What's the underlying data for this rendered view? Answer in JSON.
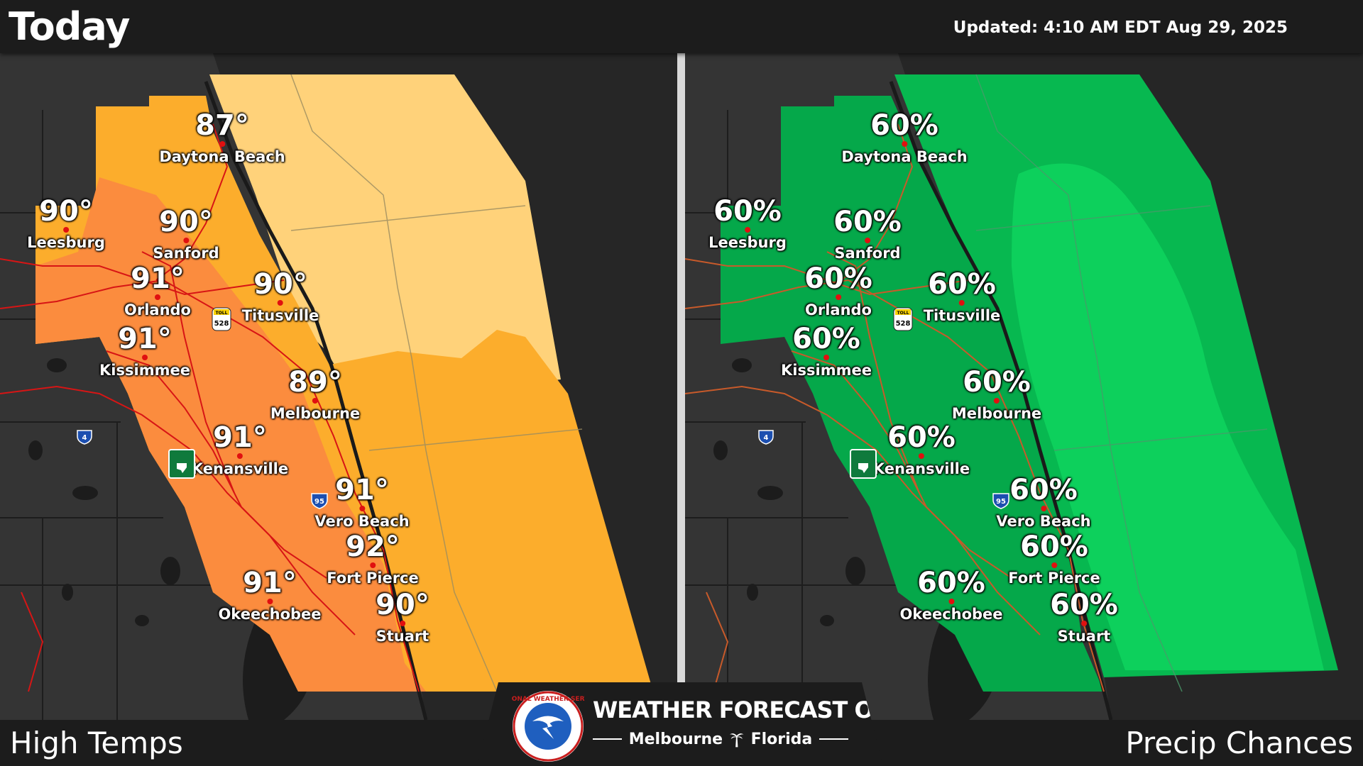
{
  "header": {
    "title": "Today",
    "updated": "Updated:  4:10 AM EDT Aug 29, 2025"
  },
  "left_panel": {
    "label": "High Temps",
    "cities": [
      {
        "name": "Daytona Beach",
        "value": "87°"
      },
      {
        "name": "Leesburg",
        "value": "90°"
      },
      {
        "name": "Sanford",
        "value": "90°"
      },
      {
        "name": "Orlando",
        "value": "91°"
      },
      {
        "name": "Titusville",
        "value": "90°"
      },
      {
        "name": "Kissimmee",
        "value": "91°"
      },
      {
        "name": "Melbourne",
        "value": "89°"
      },
      {
        "name": "Kenansville",
        "value": "91°"
      },
      {
        "name": "Vero Beach",
        "value": "91°"
      },
      {
        "name": "Fort Pierce",
        "value": "92°"
      },
      {
        "name": "Okeechobee",
        "value": "91°"
      },
      {
        "name": "Stuart",
        "value": "90°"
      }
    ],
    "colors": {
      "zone_88": "#ffd27a",
      "zone_90": "#fcad2c",
      "zone_91": "#fb8c3e"
    }
  },
  "right_panel": {
    "label": "Precip Chances",
    "cities": [
      {
        "name": "Daytona Beach",
        "value": "60%"
      },
      {
        "name": "Leesburg",
        "value": "60%"
      },
      {
        "name": "Sanford",
        "value": "60%"
      },
      {
        "name": "Orlando",
        "value": "60%"
      },
      {
        "name": "Titusville",
        "value": "60%"
      },
      {
        "name": "Kissimmee",
        "value": "60%"
      },
      {
        "name": "Melbourne",
        "value": "60%"
      },
      {
        "name": "Kenansville",
        "value": "60%"
      },
      {
        "name": "Vero Beach",
        "value": "60%"
      },
      {
        "name": "Fort Pierce",
        "value": "60%"
      },
      {
        "name": "Okeechobee",
        "value": "60%"
      },
      {
        "name": "Stuart",
        "value": "60%"
      }
    ],
    "colors": {
      "land": "#05a84a",
      "sea_inner": "#0dd05c",
      "sea_mid": "#07b850"
    }
  },
  "shields": {
    "toll": "TOLL",
    "toll_num": "528",
    "i4": "4",
    "i95": "95",
    "turnpike": "FLORIDA'S TURNPIKE"
  },
  "logo_text": "NATIONAL WEATHER SERVICE",
  "wfo": {
    "title": "WEATHER FORECAST OFFICE",
    "city": "Melbourne",
    "state": "Florida"
  },
  "icons": [
    "nws-logo-icon",
    "palm-tree-icon",
    "toll-528-shield-icon",
    "i4-shield-icon",
    "i95-shield-icon",
    "turnpike-shield-icon"
  ]
}
